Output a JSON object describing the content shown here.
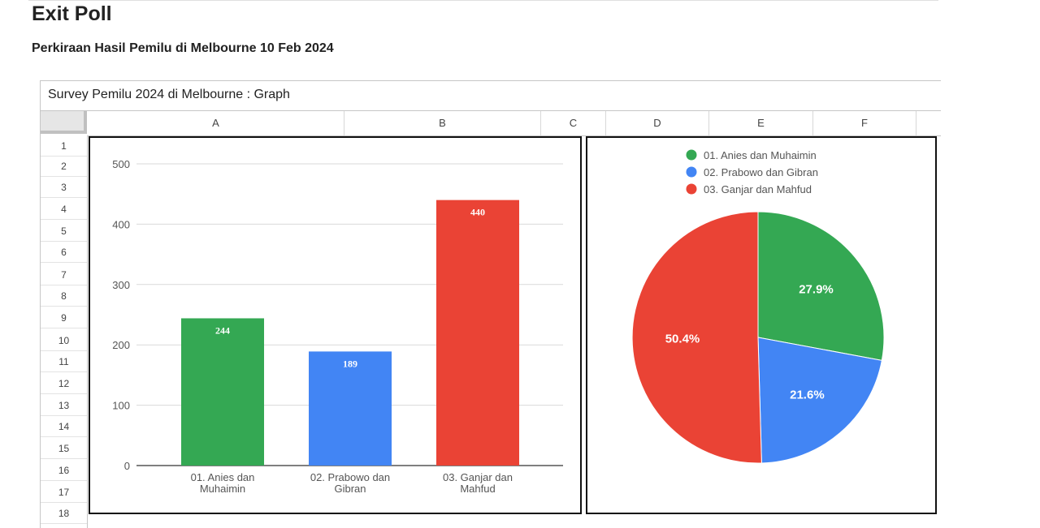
{
  "page": {
    "title": "Exit Poll",
    "subtitle": "Perkiraan Hasil Pemilu di Melbourne 10 Feb 2024"
  },
  "sheet": {
    "title": "Survey Pemilu 2024 di Melbourne : Graph",
    "columns": [
      "A",
      "B",
      "C",
      "D",
      "E",
      "F"
    ],
    "rows": [
      "1",
      "2",
      "3",
      "4",
      "5",
      "6",
      "7",
      "8",
      "9",
      "10",
      "11",
      "12",
      "13",
      "14",
      "15",
      "16",
      "17",
      "18"
    ]
  },
  "colors": {
    "green": "#34a853",
    "blue": "#4285f4",
    "red": "#ea4335"
  },
  "chart_data": [
    {
      "type": "bar",
      "categories": [
        "01. Anies dan Muhaimin",
        "02. Prabowo dan Gibran",
        "03. Ganjar dan Mahfud"
      ],
      "category_lines": [
        [
          "01. Anies dan",
          "Muhaimin"
        ],
        [
          "02. Prabowo dan",
          "Gibran"
        ],
        [
          "03. Ganjar dan",
          "Mahfud"
        ]
      ],
      "values": [
        244,
        189,
        440
      ],
      "value_labels": [
        "244",
        "189",
        "440"
      ],
      "bar_colors": [
        "#34a853",
        "#4285f4",
        "#ea4335"
      ],
      "ylim": [
        0,
        500
      ],
      "yticks": [
        0,
        100,
        200,
        300,
        400,
        500
      ],
      "ytick_labels": [
        "0",
        "100",
        "200",
        "300",
        "400",
        "500"
      ],
      "grid": true,
      "legend": "none"
    },
    {
      "type": "pie",
      "labels": [
        "01. Anies dan Muhaimin",
        "02. Prabowo dan Gibran",
        "03. Ganjar dan Mahfud"
      ],
      "values": [
        27.9,
        21.6,
        50.4
      ],
      "value_labels": [
        "27.9%",
        "21.6%",
        "50.4%"
      ],
      "slice_colors": [
        "#34a853",
        "#4285f4",
        "#ea4335"
      ],
      "legend": "top"
    }
  ]
}
